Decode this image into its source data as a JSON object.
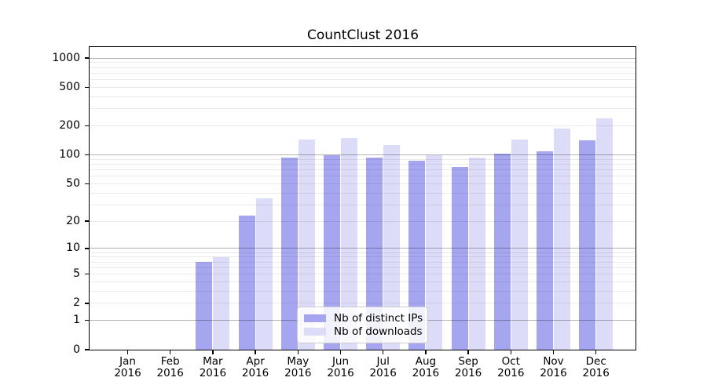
{
  "title": "CountClust 2016",
  "chart_data": {
    "type": "bar",
    "title": "CountClust 2016",
    "xlabel": "",
    "ylabel": "",
    "x_tick_year": "2016",
    "months": [
      "Jan",
      "Feb",
      "Mar",
      "Apr",
      "May",
      "Jun",
      "Jul",
      "Aug",
      "Sep",
      "Oct",
      "Nov",
      "Dec"
    ],
    "series": [
      {
        "name": "Nb of distinct IPs",
        "color": "#a5a5f0",
        "values": [
          0,
          0,
          7,
          23,
          94,
          100,
          94,
          87,
          75,
          103,
          108,
          141
        ]
      },
      {
        "name": "Nb of downloads",
        "color": "#dcdcf8",
        "values": [
          0,
          0,
          8,
          35,
          143,
          150,
          127,
          100,
          94,
          144,
          187,
          238
        ]
      }
    ],
    "y_scale": "log1p",
    "y_ticks": [
      0,
      1,
      2,
      5,
      10,
      20,
      50,
      100,
      200,
      500,
      1000
    ],
    "y_major_gridlines": [
      1,
      10,
      100,
      1000
    ],
    "ylim": [
      0,
      1300
    ],
    "grid": "on",
    "legend_position": "lower-center"
  },
  "colors": {
    "bar_dark": "#a5a5f0",
    "bar_light": "#dcdcf8",
    "grid_major": "rgba(0,0,0,0.30)",
    "grid_minor": "rgba(0,0,0,0.08)",
    "frame": "#000000",
    "legend_border": "#cccccc",
    "background": "#ffffff"
  }
}
